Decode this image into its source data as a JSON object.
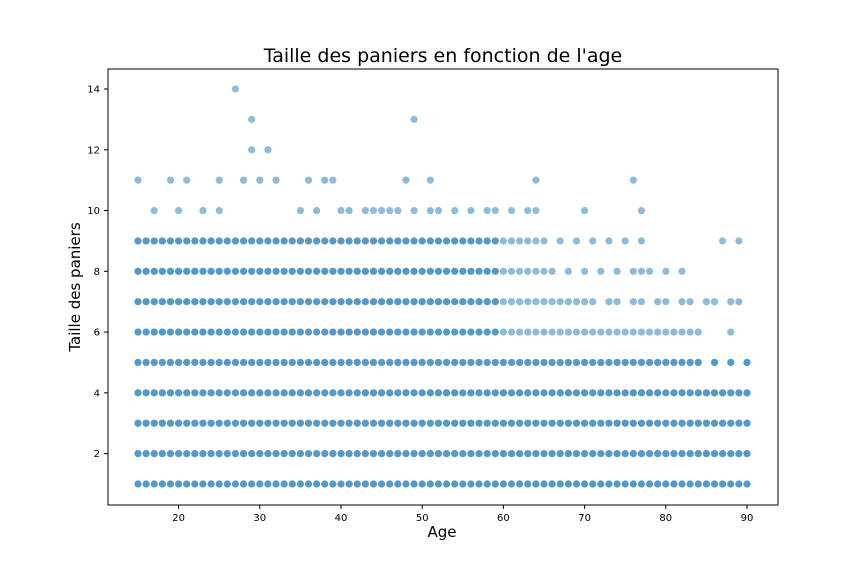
{
  "chart_data": {
    "type": "scatter",
    "title": "Taille des paniers en fonction de l'age",
    "xlabel": "Age",
    "ylabel": "Taille des paniers",
    "xlim": [
      15,
      90
    ],
    "ylim": [
      1,
      14
    ],
    "x_ticks": [
      "20",
      "30",
      "40",
      "50",
      "60",
      "70",
      "80",
      "90"
    ],
    "y_ticks": [
      "2",
      "4",
      "6",
      "8",
      "10",
      "12",
      "14"
    ],
    "grid": false,
    "point_color": "#1f77b4",
    "point_alpha": 0.5,
    "rows": [
      {
        "y": 1,
        "x_min": 15,
        "x_max": 90
      },
      {
        "y": 2,
        "x_min": 15,
        "x_max": 90
      },
      {
        "y": 3,
        "x_min": 15,
        "x_max": 90
      },
      {
        "y": 4,
        "x_min": 15,
        "x_max": 90
      },
      {
        "y": 5,
        "x_min": 15,
        "x_max": 90
      },
      {
        "y": 6,
        "x_min": 15,
        "x_max": 88
      },
      {
        "y": 7,
        "x_min": 15,
        "x_max": 89
      },
      {
        "y": 8,
        "x_min": 15,
        "x_max": 83
      },
      {
        "y": 9,
        "x_min": 15,
        "x_max": 89
      },
      {
        "y": 10,
        "x_min": 17,
        "x_max": 77
      },
      {
        "y": 11,
        "x_min": 15,
        "x_max": 76
      },
      {
        "y": 12,
        "x_min": 29,
        "x_max": 31
      },
      {
        "y": 13,
        "x_min": 29,
        "x_max": 49
      },
      {
        "y": 14,
        "x_min": 27,
        "x_max": 27
      }
    ],
    "points": [
      {
        "x": 15,
        "y": 11
      },
      {
        "x": 19,
        "y": 11
      },
      {
        "x": 21,
        "y": 11
      },
      {
        "x": 25,
        "y": 11
      },
      {
        "x": 28,
        "y": 11
      },
      {
        "x": 30,
        "y": 11
      },
      {
        "x": 32,
        "y": 11
      },
      {
        "x": 36,
        "y": 11
      },
      {
        "x": 38,
        "y": 11
      },
      {
        "x": 39,
        "y": 11
      },
      {
        "x": 48,
        "y": 11
      },
      {
        "x": 51,
        "y": 11
      },
      {
        "x": 64,
        "y": 11
      },
      {
        "x": 76,
        "y": 11
      },
      {
        "x": 17,
        "y": 10
      },
      {
        "x": 20,
        "y": 10
      },
      {
        "x": 23,
        "y": 10
      },
      {
        "x": 25,
        "y": 10
      },
      {
        "x": 35,
        "y": 10
      },
      {
        "x": 37,
        "y": 10
      },
      {
        "x": 40,
        "y": 10
      },
      {
        "x": 41,
        "y": 10
      },
      {
        "x": 43,
        "y": 10
      },
      {
        "x": 44,
        "y": 10
      },
      {
        "x": 45,
        "y": 10
      },
      {
        "x": 46,
        "y": 10
      },
      {
        "x": 47,
        "y": 10
      },
      {
        "x": 49,
        "y": 10
      },
      {
        "x": 51,
        "y": 10
      },
      {
        "x": 52,
        "y": 10
      },
      {
        "x": 54,
        "y": 10
      },
      {
        "x": 56,
        "y": 10
      },
      {
        "x": 58,
        "y": 10
      },
      {
        "x": 59,
        "y": 10
      },
      {
        "x": 61,
        "y": 10
      },
      {
        "x": 63,
        "y": 10
      },
      {
        "x": 64,
        "y": 10
      },
      {
        "x": 70,
        "y": 10
      },
      {
        "x": 77,
        "y": 10
      },
      {
        "x": 29,
        "y": 12
      },
      {
        "x": 31,
        "y": 12
      },
      {
        "x": 29,
        "y": 13
      },
      {
        "x": 49,
        "y": 13
      },
      {
        "x": 27,
        "y": 14
      }
    ]
  }
}
